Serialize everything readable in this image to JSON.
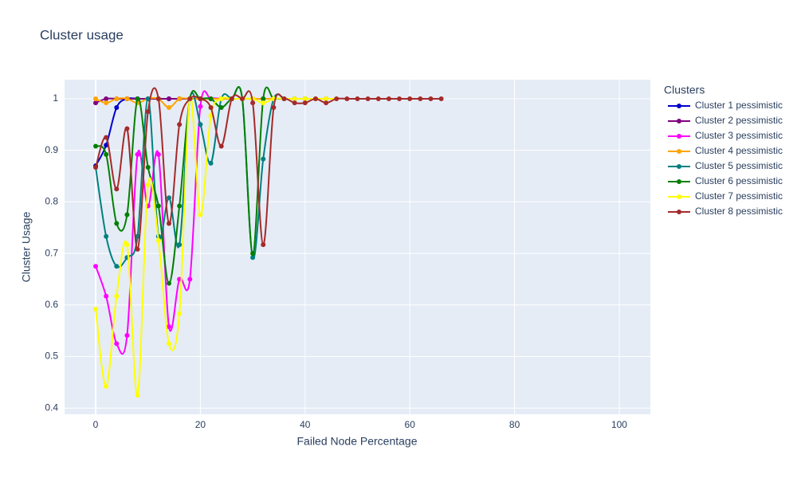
{
  "chart_data": {
    "type": "line",
    "title": "Cluster usage",
    "x_label": "Failed Node Percentage",
    "y_label": "Cluster Usage",
    "legend_title": "Clusters",
    "x": [
      0,
      2,
      4,
      6,
      8,
      10,
      12,
      14,
      16,
      18,
      20,
      22,
      24,
      26,
      28,
      30,
      32,
      34,
      36,
      38,
      40,
      42,
      44,
      46,
      48,
      50,
      52,
      54,
      56,
      58,
      60,
      62,
      64,
      66
    ],
    "xlim": [
      -5.94,
      105.94
    ],
    "ylim": [
      0.388,
      1.037
    ],
    "xticks": [
      0,
      20,
      40,
      60,
      80,
      100
    ],
    "yticks": [
      0.4,
      0.5,
      0.6,
      0.7,
      0.8,
      0.9,
      1
    ],
    "grid": true,
    "smooth": true,
    "legend_position": "right",
    "series": [
      {
        "name": "Cluster 1 pessimistic",
        "color": "#0000cd",
        "values": [
          0.87,
          0.91,
          0.983,
          1,
          1,
          1,
          1,
          1,
          1,
          1,
          1,
          1,
          1,
          1,
          1,
          1,
          1,
          1,
          null,
          null,
          null,
          null,
          null,
          null,
          null,
          null,
          null,
          null,
          null,
          null,
          null,
          null,
          null,
          null
        ]
      },
      {
        "name": "Cluster 2 pessimistic",
        "color": "#800080",
        "values": [
          0.992,
          1,
          1,
          1,
          1,
          1,
          1,
          1,
          1,
          1,
          1,
          1,
          1,
          1,
          1,
          1,
          1,
          1,
          1,
          1,
          1,
          1,
          1,
          null,
          null,
          null,
          null,
          null,
          null,
          null,
          null,
          null,
          null,
          null
        ]
      },
      {
        "name": "Cluster 3 pessimistic",
        "color": "#ff00ff",
        "values": [
          0.675,
          0.617,
          0.525,
          0.541,
          0.892,
          0.792,
          0.892,
          0.558,
          0.65,
          0.65,
          0.985,
          1,
          1,
          1,
          1,
          1,
          null,
          null,
          null,
          null,
          null,
          null,
          null,
          null,
          null,
          null,
          null,
          null,
          null,
          null,
          null,
          null,
          null,
          null
        ]
      },
      {
        "name": "Cluster 4 pessimistic",
        "color": "#ffa500",
        "values": [
          1,
          0.992,
          1,
          1,
          0.992,
          1,
          1,
          0.983,
          1,
          1,
          1,
          1,
          1,
          1,
          1,
          1,
          1,
          1,
          null,
          null,
          null,
          null,
          null,
          null,
          null,
          null,
          null,
          null,
          null,
          null,
          null,
          null,
          null,
          null
        ]
      },
      {
        "name": "Cluster 5 pessimistic",
        "color": "#008080",
        "values": [
          0.867,
          0.733,
          0.675,
          0.692,
          0.733,
          1,
          0.733,
          0.808,
          0.717,
          1,
          0.95,
          0.875,
          1,
          1,
          1,
          0.692,
          0.883,
          1,
          1,
          null,
          null,
          null,
          null,
          null,
          null,
          null,
          null,
          null,
          null,
          null,
          null,
          null,
          null,
          null
        ]
      },
      {
        "name": "Cluster 6 pessimistic",
        "color": "#008000",
        "values": [
          0.908,
          0.892,
          0.758,
          0.775,
          1,
          0.867,
          0.792,
          0.642,
          0.792,
          1,
          1,
          1,
          0.983,
          1,
          1,
          0.7,
          1,
          1,
          1,
          1,
          1,
          null,
          null,
          null,
          null,
          null,
          null,
          null,
          null,
          null,
          null,
          null,
          null,
          null
        ]
      },
      {
        "name": "Cluster 7 pessimistic",
        "color": "#ffff00",
        "values": [
          0.592,
          0.442,
          0.617,
          0.717,
          0.425,
          0.833,
          0.725,
          0.525,
          0.583,
          1,
          0.775,
          0.967,
          1,
          1,
          1,
          1,
          0.992,
          1,
          1,
          1,
          1,
          1,
          1,
          1,
          null,
          null,
          null,
          null,
          null,
          null,
          null,
          null,
          null,
          null
        ]
      },
      {
        "name": "Cluster 8 pessimistic",
        "color": "#a52a2a",
        "values": [
          0.867,
          0.925,
          0.825,
          0.942,
          0.708,
          0.975,
          1,
          0.758,
          0.95,
          1,
          1,
          0.983,
          0.908,
          1,
          1,
          0.992,
          0.717,
          0.983,
          1,
          0.992,
          0.992,
          1,
          0.992,
          1,
          1,
          1,
          1,
          1,
          1,
          1,
          1,
          1,
          1,
          1
        ]
      }
    ]
  }
}
